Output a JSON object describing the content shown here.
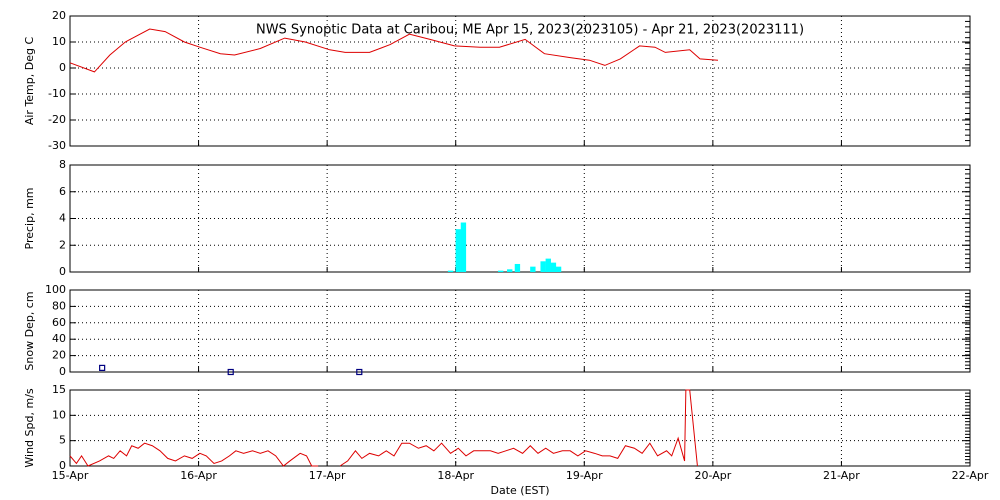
{
  "chart_data": [
    {
      "type": "line",
      "title": "NWS Synoptic Data at Caribou, ME   Apr 15, 2023(2023105) - Apr 21, 2023(2023111)",
      "ylabel": "Air Temp, Deg C",
      "x": [
        0,
        0.19,
        0.31,
        0.43,
        0.62,
        0.74,
        0.89,
        1.01,
        1.17,
        1.28,
        1.48,
        1.67,
        1.83,
        2.02,
        2.14,
        2.33,
        2.49,
        2.64,
        2.8,
        2.99,
        3.19,
        3.34,
        3.54,
        3.69,
        3.89,
        4.04,
        4.16,
        4.28,
        4.43,
        4.55,
        4.63,
        4.82,
        4.9,
        5.04
      ],
      "series": [
        {
          "name": "Air Temp",
          "color": "#dd0000",
          "values": [
            2,
            -1.5,
            5,
            10,
            15,
            14,
            10,
            8,
            5.5,
            5,
            7.5,
            11.5,
            10,
            7,
            6,
            6,
            9,
            13,
            11,
            8.5,
            8,
            8,
            11,
            5.5,
            4,
            3,
            1,
            3.5,
            8.5,
            8,
            6,
            7,
            3.5,
            3
          ]
        }
      ],
      "xlim": [
        0,
        7
      ],
      "xticks": [
        0,
        1,
        2,
        3,
        4,
        5,
        6,
        7
      ],
      "ylim": [
        -30,
        20
      ],
      "yticks": [
        -30,
        -20,
        -10,
        0,
        10,
        20
      ],
      "grid": true
    },
    {
      "type": "bar",
      "ylabel": "Precip, mm",
      "x": [
        2.96,
        3.02,
        3.06,
        3.35,
        3.42,
        3.48,
        3.6,
        3.68,
        3.72,
        3.76,
        3.8
      ],
      "series": [
        {
          "name": "Precip",
          "color": "#00ffff",
          "values": [
            0.1,
            3.2,
            3.7,
            0.1,
            0.2,
            0.6,
            0.4,
            0.8,
            1.0,
            0.7,
            0.4
          ]
        }
      ],
      "xlim": [
        0,
        7
      ],
      "xticks": [
        0,
        1,
        2,
        3,
        4,
        5,
        6,
        7
      ],
      "ylim": [
        0,
        8
      ],
      "yticks": [
        0,
        2,
        4,
        6,
        8
      ],
      "grid": true
    },
    {
      "type": "scatter",
      "ylabel": "Snow Dep, cm",
      "x": [
        0.25,
        1.25,
        2.25
      ],
      "series": [
        {
          "name": "Snow Depth",
          "color": "#000080",
          "values": [
            5,
            0,
            0
          ]
        }
      ],
      "xlim": [
        0,
        7
      ],
      "xticks": [
        0,
        1,
        2,
        3,
        4,
        5,
        6,
        7
      ],
      "ylim": [
        0,
        100
      ],
      "yticks": [
        0,
        20,
        40,
        60,
        80,
        100
      ],
      "grid": true
    },
    {
      "type": "line",
      "ylabel": "Wind Spd, m/s",
      "xlabel": "Date (EST)",
      "x": [
        0,
        0.05,
        0.09,
        0.14,
        0.23,
        0.3,
        0.34,
        0.39,
        0.44,
        0.48,
        0.53,
        0.58,
        0.64,
        0.7,
        0.76,
        0.82,
        0.89,
        0.95,
        1.01,
        1.06,
        1.12,
        1.18,
        1.24,
        1.29,
        1.35,
        1.42,
        1.48,
        1.54,
        1.6,
        1.66,
        1.71,
        1.79,
        1.84,
        1.88,
        1.93,
        2.0,
        2.1,
        2.16,
        2.22,
        2.27,
        2.33,
        2.4,
        2.46,
        2.52,
        2.58,
        2.64,
        2.71,
        2.77,
        2.83,
        2.89,
        2.96,
        3.02,
        3.08,
        3.14,
        3.2,
        3.27,
        3.33,
        3.39,
        3.45,
        3.52,
        3.58,
        3.64,
        3.7,
        3.76,
        3.83,
        3.89,
        3.95,
        4.01,
        4.08,
        4.14,
        4.2,
        4.26,
        4.32,
        4.39,
        4.45,
        4.51,
        4.57,
        4.64,
        4.68,
        4.73,
        4.78,
        4.79,
        4.82,
        4.88
      ],
      "series": [
        {
          "name": "Wind Speed",
          "color": "#dd0000",
          "values": [
            2,
            0.5,
            2,
            0,
            1,
            2,
            1.5,
            3,
            2,
            4,
            3.5,
            4.5,
            4,
            3,
            1.5,
            1,
            2,
            1.5,
            2.5,
            2,
            0.5,
            1,
            2,
            3,
            2.5,
            3,
            2.5,
            3,
            2,
            0,
            1,
            2.5,
            2,
            0,
            0,
            null,
            0,
            1,
            3,
            1.5,
            2.5,
            2,
            3,
            2,
            4.5,
            4.5,
            3.5,
            4,
            3,
            4.5,
            2.5,
            3.5,
            2,
            3,
            3,
            3,
            2.5,
            3,
            3.5,
            2.5,
            4,
            2.5,
            3.5,
            2.5,
            3,
            3,
            2,
            3,
            2.5,
            2,
            2,
            1.5,
            4,
            3.5,
            2.5,
            4.5,
            2,
            3,
            2,
            5.5,
            1,
            15,
            15,
            0
          ]
        }
      ],
      "xlim": [
        0,
        7
      ],
      "xticks": [
        {
          "value": 0,
          "label": "15-Apr"
        },
        {
          "value": 1,
          "label": "16-Apr"
        },
        {
          "value": 2,
          "label": "17-Apr"
        },
        {
          "value": 3,
          "label": "18-Apr"
        },
        {
          "value": 4,
          "label": "19-Apr"
        },
        {
          "value": 5,
          "label": "20-Apr"
        },
        {
          "value": 6,
          "label": "21-Apr"
        },
        {
          "value": 7,
          "label": "22-Apr"
        }
      ],
      "ylim": [
        0,
        15
      ],
      "yticks": [
        0,
        5,
        10,
        15
      ],
      "grid": true
    }
  ]
}
